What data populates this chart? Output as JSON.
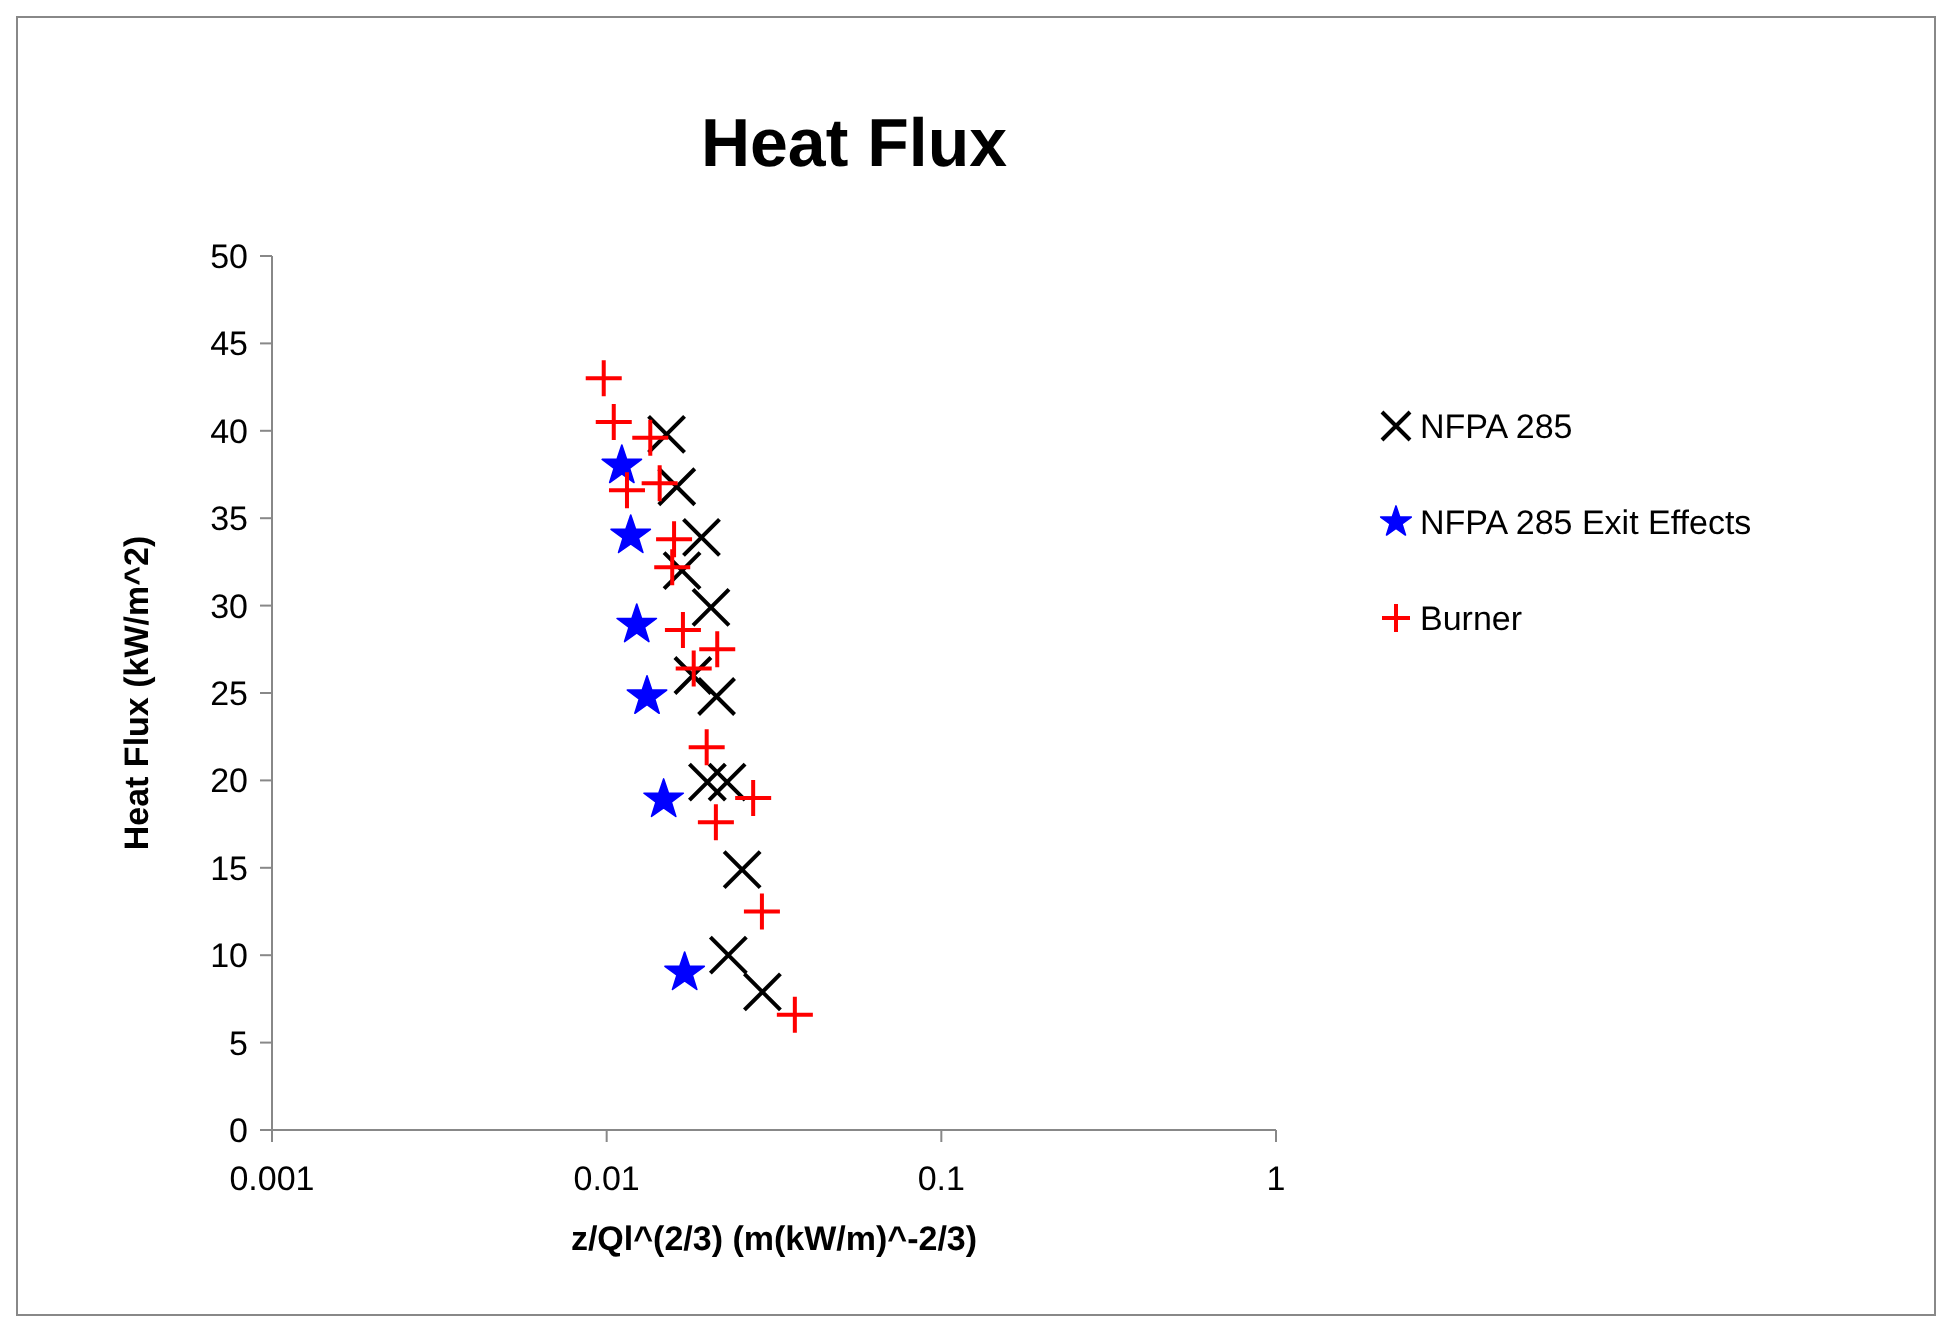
{
  "chart_data": {
    "type": "scatter",
    "title": "Heat Flux",
    "xlabel": "z/Ql^(2/3) (m(kW/m)^-2/3)",
    "ylabel": "Heat Flux (kW/m^2)",
    "log": "x",
    "grid": false,
    "legend": "right",
    "xlim": [
      0.001,
      1
    ],
    "xticks": [
      0.001,
      0.01,
      0.1,
      1
    ],
    "ylim": [
      0,
      50
    ],
    "yticks": [
      0,
      5,
      10,
      15,
      20,
      25,
      30,
      35,
      40,
      45,
      50
    ],
    "series": [
      {
        "name": "NFPA 285",
        "color": "#000000",
        "marker": "cross",
        "x": [
          0.0151,
          0.0162,
          0.0168,
          0.0192,
          0.0205,
          0.0181,
          0.0213,
          0.02,
          0.0229,
          0.0254,
          0.0231,
          0.0292
        ],
        "values": [
          39.8,
          36.8,
          32,
          33.9,
          29.9,
          26,
          24.8,
          19.9,
          19.9,
          14.9,
          10,
          7.9
        ]
      },
      {
        "name": "NFPA 285 Exit Effects",
        "color": "#0000ff",
        "marker": "star",
        "x": [
          0.0111,
          0.0118,
          0.0123,
          0.0132,
          0.0148,
          0.0171
        ],
        "values": [
          38,
          34,
          28.9,
          24.8,
          18.9,
          9
        ]
      },
      {
        "name": "Burner",
        "color": "#ff0000",
        "marker": "plus",
        "x": [
          0.0098,
          0.0105,
          0.0135,
          0.0115,
          0.0144,
          0.0159,
          0.0157,
          0.0169,
          0.0182,
          0.0214,
          0.0199,
          0.0274,
          0.0212,
          0.0291,
          0.0365
        ],
        "values": [
          43,
          40.5,
          39.6,
          36.6,
          37,
          33.8,
          32.2,
          28.6,
          26.4,
          27.5,
          21.9,
          19,
          17.6,
          12.5,
          6.6
        ]
      }
    ]
  }
}
